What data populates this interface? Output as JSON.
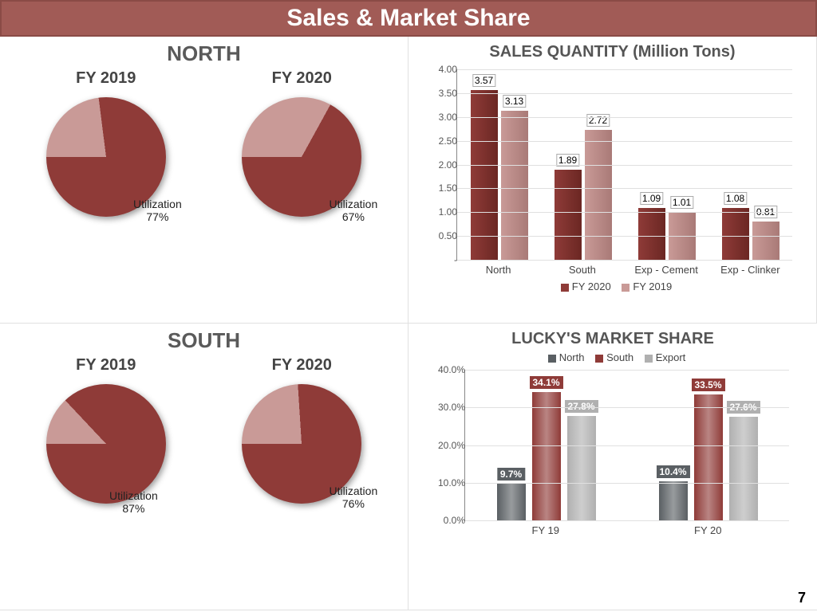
{
  "title": "Sales & Market Share",
  "page_number": "7",
  "colors": {
    "title_bar_bg": "#a15b56",
    "pie_dark": "#8f3b38",
    "pie_light": "#c99a97",
    "bar_fy2020": "#8f3b38",
    "bar_fy2019": "#c99a97",
    "ms_north": "#5a5f63",
    "ms_south": "#8f3b38",
    "ms_export": "#b0b0b0"
  },
  "pies": {
    "north": {
      "title": "NORTH",
      "fy2019": {
        "label": "FY 2019",
        "util_text": "Utilization\n77%",
        "utilization": 77
      },
      "fy2020": {
        "label": "FY 2020",
        "util_text": "Utilization\n67%",
        "utilization": 67
      }
    },
    "south": {
      "title": "SOUTH",
      "fy2019": {
        "label": "FY 2019",
        "util_text": "Utilization\n87%",
        "utilization": 87
      },
      "fy2020": {
        "label": "FY 2020",
        "util_text": "Utilization\n76%",
        "utilization": 76
      }
    }
  },
  "sales_quantity": {
    "title": "SALES QUANTITY (Million Tons)",
    "ymax": 4.0,
    "yticks": [
      "4.00",
      "3.50",
      "3.00",
      "2.50",
      "2.00",
      "1.50",
      "1.00",
      "0.50",
      "-"
    ],
    "categories": [
      "North",
      "South",
      "Exp - Cement",
      "Exp - Clinker"
    ],
    "fy2020": [
      3.57,
      1.89,
      1.09,
      1.08
    ],
    "fy2019": [
      3.13,
      2.72,
      1.01,
      0.81
    ],
    "legend": {
      "a": "FY 2020",
      "b": "FY 2019"
    }
  },
  "market_share": {
    "title": "LUCKY'S MARKET SHARE",
    "legend": {
      "n": "North",
      "s": "South",
      "e": "Export"
    },
    "ymax": 40.0,
    "yticks": [
      "40.0%",
      "30.0%",
      "20.0%",
      "10.0%",
      "0.0%"
    ],
    "groups": [
      {
        "label": "FY 19",
        "north": 9.7,
        "south": 34.1,
        "export": 27.8
      },
      {
        "label": "FY 20",
        "north": 10.4,
        "south": 33.5,
        "export": 27.6
      }
    ]
  }
}
